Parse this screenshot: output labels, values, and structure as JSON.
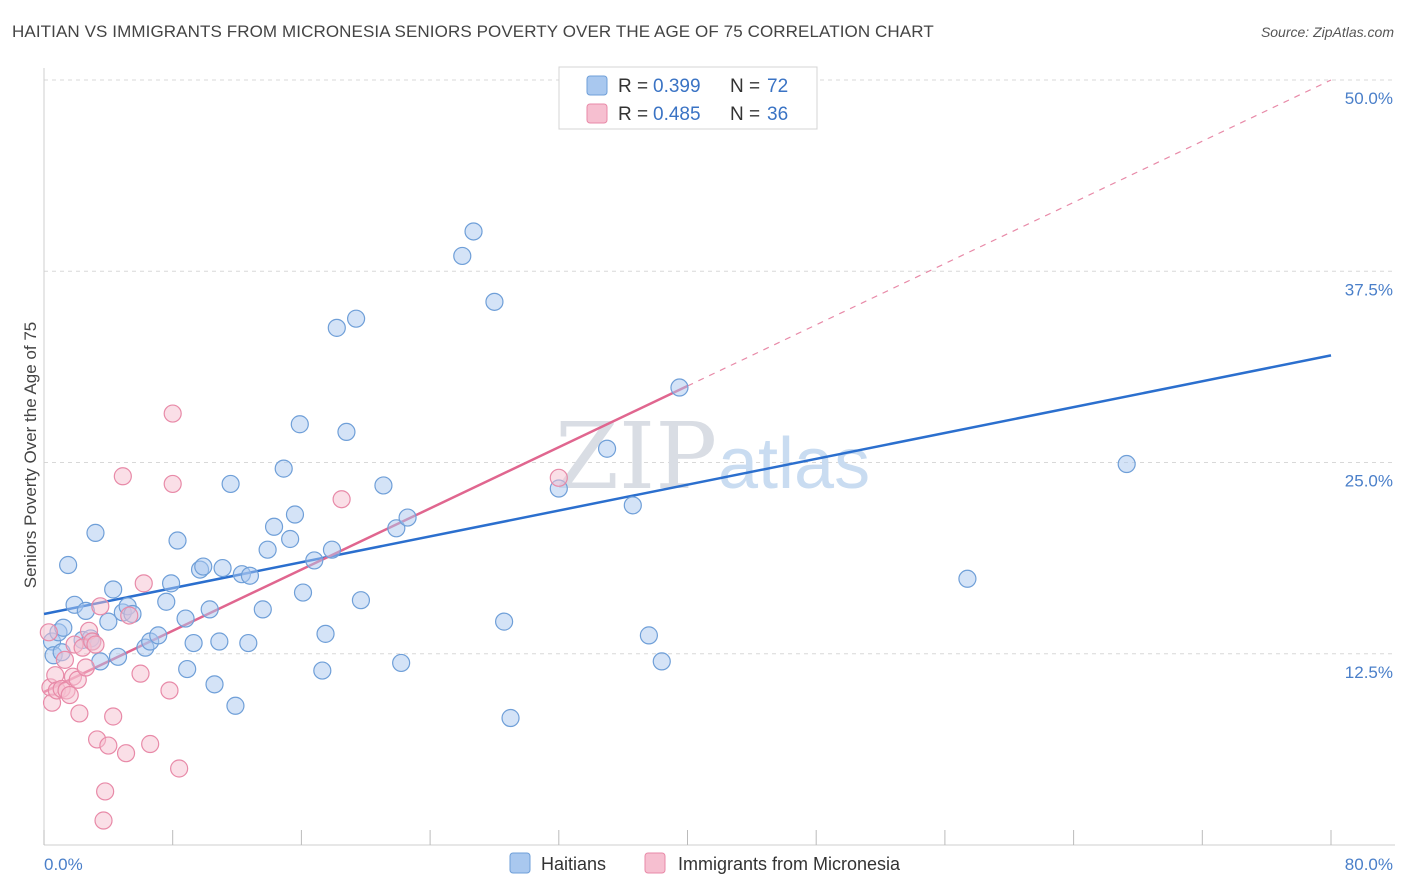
{
  "title": "HAITIAN VS IMMIGRANTS FROM MICRONESIA SENIORS POVERTY OVER THE AGE OF 75 CORRELATION CHART",
  "source": "Source: ZipAtlas.com",
  "watermark": {
    "part1": "ZIP",
    "part2": "atlas"
  },
  "colors": {
    "haitians_fill": "#a9c8ef",
    "haitians_stroke": "#6f9fd8",
    "haitians_line": "#2b6fce",
    "micronesia_fill": "#f6bfd0",
    "micronesia_stroke": "#e88aa8",
    "micronesia_line": "#e0668f",
    "tick_text": "#4a7fc9",
    "grid": "#d8d8d8"
  },
  "legend": {
    "items": [
      {
        "r_label": "R =",
        "r_value": "0.399",
        "n_label": "N =",
        "n_value": "72"
      },
      {
        "r_label": "R =",
        "r_value": "0.485",
        "n_label": "N =",
        "n_value": "36"
      }
    ]
  },
  "bottom_legend": [
    "Haitians",
    "Immigrants from Micronesia"
  ],
  "chart_data": {
    "type": "scatter",
    "title": "HAITIAN VS IMMIGRANTS FROM MICRONESIA SENIORS POVERTY OVER THE AGE OF 75 CORRELATION CHART",
    "xlabel": "",
    "ylabel": "Seniors Poverty Over the Age of 75",
    "xlim": [
      0,
      80
    ],
    "ylim": [
      0,
      50
    ],
    "x_tick_labels": [
      "0.0%",
      "80.0%"
    ],
    "x_ticks": [
      0,
      8,
      16,
      24,
      32,
      40,
      48,
      56,
      64,
      72,
      80
    ],
    "y_ticks": [
      12.5,
      25.0,
      37.5,
      50.0
    ],
    "y_tick_labels": [
      "12.5%",
      "25.0%",
      "37.5%",
      "50.0%"
    ],
    "grid": true,
    "legend_position": "top-center",
    "series": [
      {
        "name": "Haitians",
        "points": [
          [
            0.5,
            13.3
          ],
          [
            0.6,
            12.4
          ],
          [
            0.9,
            13.9
          ],
          [
            1.2,
            14.2
          ],
          [
            1.5,
            18.3
          ],
          [
            1.9,
            15.7
          ],
          [
            2.4,
            13.4
          ],
          [
            2.6,
            15.3
          ],
          [
            2.9,
            13.5
          ],
          [
            3.2,
            20.4
          ],
          [
            3.5,
            12.0
          ],
          [
            4.0,
            14.6
          ],
          [
            4.3,
            16.7
          ],
          [
            4.6,
            12.3
          ],
          [
            4.9,
            15.2
          ],
          [
            5.2,
            15.6
          ],
          [
            5.5,
            15.1
          ],
          [
            6.3,
            12.9
          ],
          [
            6.6,
            13.3
          ],
          [
            7.1,
            13.7
          ],
          [
            7.6,
            15.9
          ],
          [
            7.9,
            17.1
          ],
          [
            8.3,
            19.9
          ],
          [
            8.8,
            14.8
          ],
          [
            8.9,
            11.5
          ],
          [
            9.3,
            13.2
          ],
          [
            9.7,
            18.0
          ],
          [
            9.9,
            18.2
          ],
          [
            10.3,
            15.4
          ],
          [
            10.6,
            10.5
          ],
          [
            10.9,
            13.3
          ],
          [
            11.1,
            18.1
          ],
          [
            11.6,
            23.6
          ],
          [
            11.9,
            9.1
          ],
          [
            12.3,
            17.7
          ],
          [
            12.8,
            17.6
          ],
          [
            12.7,
            13.2
          ],
          [
            13.6,
            15.4
          ],
          [
            13.9,
            19.3
          ],
          [
            14.3,
            20.8
          ],
          [
            14.9,
            24.6
          ],
          [
            15.3,
            20.0
          ],
          [
            15.6,
            21.6
          ],
          [
            15.9,
            27.5
          ],
          [
            16.1,
            16.5
          ],
          [
            16.8,
            18.6
          ],
          [
            17.3,
            11.4
          ],
          [
            17.5,
            13.8
          ],
          [
            17.9,
            19.3
          ],
          [
            18.2,
            33.8
          ],
          [
            18.8,
            27.0
          ],
          [
            19.4,
            34.4
          ],
          [
            19.7,
            16.0
          ],
          [
            21.1,
            23.5
          ],
          [
            21.9,
            20.7
          ],
          [
            22.2,
            11.9
          ],
          [
            22.6,
            21.4
          ],
          [
            26.0,
            38.5
          ],
          [
            26.7,
            40.1
          ],
          [
            28.0,
            35.5
          ],
          [
            28.6,
            14.6
          ],
          [
            29.0,
            8.3
          ],
          [
            32.0,
            23.3
          ],
          [
            35.0,
            25.9
          ],
          [
            36.6,
            22.2
          ],
          [
            37.6,
            13.7
          ],
          [
            38.4,
            12.0
          ],
          [
            39.5,
            29.9
          ],
          [
            67.3,
            24.9
          ],
          [
            57.4,
            17.4
          ],
          [
            1.1,
            12.6
          ],
          [
            3.0,
            13.3
          ]
        ],
        "trend": {
          "x": [
            0,
            80
          ],
          "y": [
            15.1,
            32.0
          ]
        }
      },
      {
        "name": "Immigrants from Micronesia",
        "points": [
          [
            0.3,
            13.9
          ],
          [
            0.4,
            10.3
          ],
          [
            0.5,
            9.3
          ],
          [
            0.7,
            11.1
          ],
          [
            0.8,
            10.1
          ],
          [
            1.1,
            10.2
          ],
          [
            1.3,
            12.1
          ],
          [
            1.4,
            10.1
          ],
          [
            1.6,
            9.8
          ],
          [
            1.8,
            11.0
          ],
          [
            1.9,
            13.1
          ],
          [
            2.1,
            10.8
          ],
          [
            2.2,
            8.6
          ],
          [
            2.4,
            12.9
          ],
          [
            2.6,
            11.6
          ],
          [
            2.8,
            14.0
          ],
          [
            3.0,
            13.3
          ],
          [
            3.2,
            13.1
          ],
          [
            3.3,
            6.9
          ],
          [
            3.5,
            15.6
          ],
          [
            3.7,
            1.6
          ],
          [
            3.8,
            3.5
          ],
          [
            4.0,
            6.5
          ],
          [
            4.3,
            8.4
          ],
          [
            4.9,
            24.1
          ],
          [
            5.1,
            6.0
          ],
          [
            5.3,
            15.0
          ],
          [
            6.0,
            11.2
          ],
          [
            6.2,
            17.1
          ],
          [
            6.6,
            6.6
          ],
          [
            7.8,
            10.1
          ],
          [
            8.0,
            23.6
          ],
          [
            8.0,
            28.2
          ],
          [
            8.4,
            5.0
          ],
          [
            18.5,
            22.6
          ],
          [
            32.0,
            24.0
          ]
        ],
        "trend": {
          "x": [
            0,
            40
          ],
          "y": [
            10.0,
            30.0
          ],
          "dashed_extension": {
            "x": [
              40,
              80
            ],
            "y": [
              30.0,
              50.0
            ]
          }
        }
      }
    ]
  }
}
